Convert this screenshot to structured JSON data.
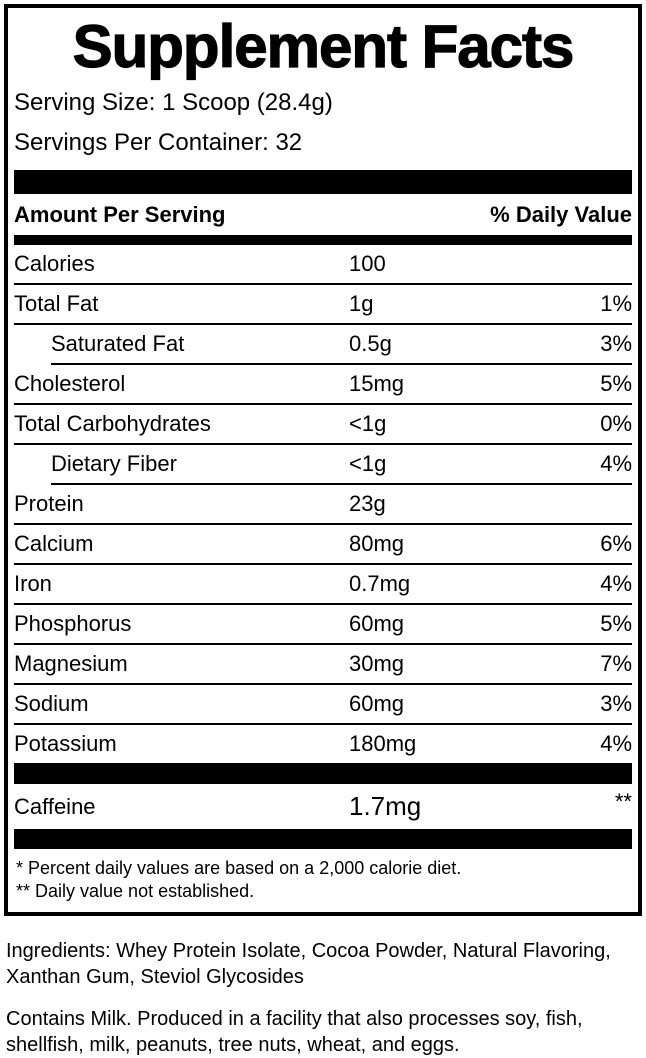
{
  "panel": {
    "title": "Supplement Facts",
    "serving_size": "Serving Size: 1 Scoop (28.4g)",
    "servings_per_container": "Servings Per Container: 32",
    "header": {
      "amount_per_serving": "Amount Per Serving",
      "percent_daily_value": "% Daily Value"
    },
    "nutrients": [
      {
        "name": "Calories",
        "amount": "100",
        "dv": "",
        "indent": false
      },
      {
        "name": "Total Fat",
        "amount": "1g",
        "dv": "1%",
        "indent": false
      },
      {
        "name": "Saturated Fat",
        "amount": "0.5g",
        "dv": "3%",
        "indent": true
      },
      {
        "name": "Cholesterol",
        "amount": "15mg",
        "dv": "5%",
        "indent": false
      },
      {
        "name": "Total Carbohydrates",
        "amount": "<1g",
        "dv": "0%",
        "indent": false
      },
      {
        "name": "Dietary Fiber",
        "amount": "<1g",
        "dv": "4%",
        "indent": true
      },
      {
        "name": "Protein",
        "amount": "23g",
        "dv": "",
        "indent": false
      },
      {
        "name": "Calcium",
        "amount": "80mg",
        "dv": "6%",
        "indent": false
      },
      {
        "name": "Iron",
        "amount": "0.7mg",
        "dv": "4%",
        "indent": false
      },
      {
        "name": "Phosphorus",
        "amount": "60mg",
        "dv": "5%",
        "indent": false
      },
      {
        "name": "Magnesium",
        "amount": "30mg",
        "dv": "7%",
        "indent": false
      },
      {
        "name": "Sodium",
        "amount": "60mg",
        "dv": "3%",
        "indent": false
      },
      {
        "name": "Potassium",
        "amount": "180mg",
        "dv": "4%",
        "indent": false
      }
    ],
    "caffeine": {
      "name": "Caffeine",
      "amount": "1.7mg",
      "dv": "**"
    },
    "footnotes": [
      "* Percent daily values are based on a 2,000 calorie diet.",
      "** Daily value not established."
    ]
  },
  "below": {
    "ingredients": "Ingredients: Whey Protein Isolate, Cocoa Powder, Natural Flavoring, Xanthan Gum, Steviol Glycosides",
    "allergen": "Contains Milk. Produced in a facility that also processes soy, fish, shellfish, milk, peanuts, tree nuts, wheat, and eggs."
  },
  "colors": {
    "ink": "#000000",
    "background": "#ffffff"
  }
}
